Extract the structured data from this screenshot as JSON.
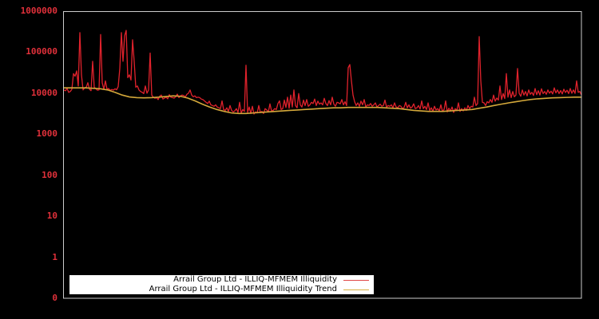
{
  "chart_data": {
    "type": "line",
    "title": "",
    "xlabel": "",
    "ylabel": "",
    "yscale": "log",
    "ylim": [
      0.1,
      1000000
    ],
    "y_tick_labels": [
      "1000000",
      "100000",
      "10000",
      "1000",
      "100",
      "10",
      "1",
      "0"
    ],
    "x_tick_labels": [],
    "grid": false,
    "legend_position": "lower left",
    "series": [
      {
        "name": "Arrail Group Ltd - ILLIQ-MFMEM Illiquidity",
        "color": "#e0222c",
        "values": [
          12000,
          11500,
          13000,
          10500,
          11000,
          12500,
          30000,
          26000,
          35000,
          15000,
          300000,
          28000,
          12000,
          13500,
          14000,
          18000,
          12500,
          11500,
          60000,
          14000,
          13000,
          11800,
          12000,
          270000,
          18000,
          12500,
          20000,
          12400,
          13000,
          11700,
          12300,
          11900,
          12800,
          12100,
          14500,
          40000,
          300000,
          60000,
          250000,
          340000,
          24000,
          28000,
          21000,
          200000,
          60000,
          14000,
          15000,
          12000,
          11000,
          10500,
          9800,
          15000,
          10000,
          12000,
          95000,
          9000,
          8000,
          7500,
          7800,
          7000,
          8500,
          9000,
          7200,
          7600,
          8000,
          7300,
          9200,
          8000,
          7800,
          7600,
          8200,
          9500,
          7800,
          8600,
          9000,
          8800,
          8000,
          9400,
          10000,
          12000,
          9000,
          8200,
          8600,
          7800,
          8000,
          7800,
          7200,
          7000,
          6500,
          6000,
          5600,
          6400,
          5200,
          5000,
          4800,
          5200,
          4600,
          4400,
          4200,
          6500,
          4000,
          3800,
          4400,
          3600,
          5000,
          3800,
          3500,
          3700,
          4200,
          3400,
          6000,
          3300,
          4000,
          3600,
          48000,
          3400,
          4600,
          3200,
          4800,
          3100,
          3500,
          3300,
          5000,
          3400,
          3600,
          3200,
          4200,
          3900,
          3500,
          5500,
          3700,
          3800,
          4200,
          4000,
          5600,
          6500,
          4000,
          4200,
          6800,
          4500,
          8000,
          4300,
          9000,
          4600,
          12000,
          5000,
          4400,
          9800,
          5200,
          4600,
          6800,
          5000,
          7000,
          4800,
          5200,
          6000,
          5600,
          7200,
          5000,
          6400,
          5400,
          5800,
          5200,
          7500,
          5600,
          5000,
          6600,
          5200,
          8000,
          5400,
          4800,
          6000,
          5800,
          5500,
          7000,
          5200,
          6200,
          5000,
          42000,
          50000,
          20000,
          9000,
          6200,
          5000,
          5800,
          4800,
          6400,
          5200,
          7000,
          4600,
          5200,
          5000,
          5600,
          4800,
          5200,
          5800,
          4600,
          5000,
          5400,
          4800,
          5000,
          6800,
          4600,
          5000,
          4800,
          5200,
          4400,
          5800,
          4600,
          4400,
          5000,
          4800,
          4200,
          4500,
          6000,
          4400,
          5200,
          4300,
          4600,
          5500,
          4200,
          4400,
          5000,
          4100,
          6500,
          4200,
          4800,
          4000,
          5800,
          3800,
          4400,
          3600,
          4800,
          3900,
          4200,
          3700,
          5200,
          3600,
          4000,
          6500,
          3500,
          4300,
          3700,
          4600,
          3400,
          4200,
          3800,
          5800,
          3600,
          4200,
          3700,
          4400,
          3800,
          5000,
          4200,
          4800,
          4600,
          8000,
          5000,
          5600,
          240000,
          20000,
          6000,
          5800,
          5000,
          6200,
          5800,
          7000,
          6000,
          9000,
          6400,
          7600,
          6800,
          15000,
          7000,
          9800,
          7400,
          30000,
          8000,
          12000,
          7800,
          11000,
          8200,
          9000,
          40000,
          10000,
          8400,
          12000,
          9000,
          11000,
          8600,
          12000,
          9400,
          10500,
          8800,
          13000,
          9200,
          11500,
          9000,
          12800,
          9800,
          11000,
          9400,
          12000,
          10000,
          11200,
          9600,
          13500,
          10200,
          12000,
          9800,
          11600,
          9600,
          12500,
          10400,
          11800,
          9800,
          13000,
          10000,
          12000,
          9900,
          20000,
          10500,
          11000,
          9000
        ]
      },
      {
        "name": "Arrail Group Ltd - ILLIQ-MFMEM Illiquidity Trend",
        "color": "#d4a83a",
        "values": [
          13500,
          13500,
          13500,
          13500,
          13200,
          12800,
          12000,
          10500,
          9000,
          8100,
          7800,
          7700,
          7800,
          8000,
          8300,
          8600,
          8400,
          7600,
          6500,
          5400,
          4600,
          4000,
          3600,
          3300,
          3200,
          3200,
          3300,
          3400,
          3500,
          3600,
          3700,
          3800,
          3900,
          4000,
          4100,
          4200,
          4300,
          4400,
          4400,
          4500,
          4500,
          4500,
          4500,
          4500,
          4400,
          4300,
          4200,
          4000,
          3800,
          3700,
          3600,
          3600,
          3600,
          3700,
          3800,
          3900,
          4000,
          4300,
          4600,
          5000,
          5400,
          5800,
          6200,
          6600,
          7000,
          7300,
          7500,
          7700,
          7800,
          7900,
          8000,
          8000
        ]
      }
    ]
  },
  "legend": {
    "items": [
      {
        "label": "Arrail Group Ltd - ILLIQ-MFMEM Illiquidity",
        "color": "#e04848"
      },
      {
        "label": "Arrail Group Ltd - ILLIQ-MFMEM Illiquidity Trend",
        "color": "#d8b040"
      }
    ]
  },
  "axes": {
    "y_ticks": [
      {
        "label": "1000000",
        "value": 1000000
      },
      {
        "label": "100000",
        "value": 100000
      },
      {
        "label": "10000",
        "value": 10000
      },
      {
        "label": "1000",
        "value": 1000
      },
      {
        "label": "100",
        "value": 100
      },
      {
        "label": "10",
        "value": 10
      },
      {
        "label": "1",
        "value": 1
      },
      {
        "label": "0",
        "value": 0.1
      }
    ],
    "tick_color": "#e0303a",
    "frame_color": "#cccccc",
    "background": "#000000"
  }
}
